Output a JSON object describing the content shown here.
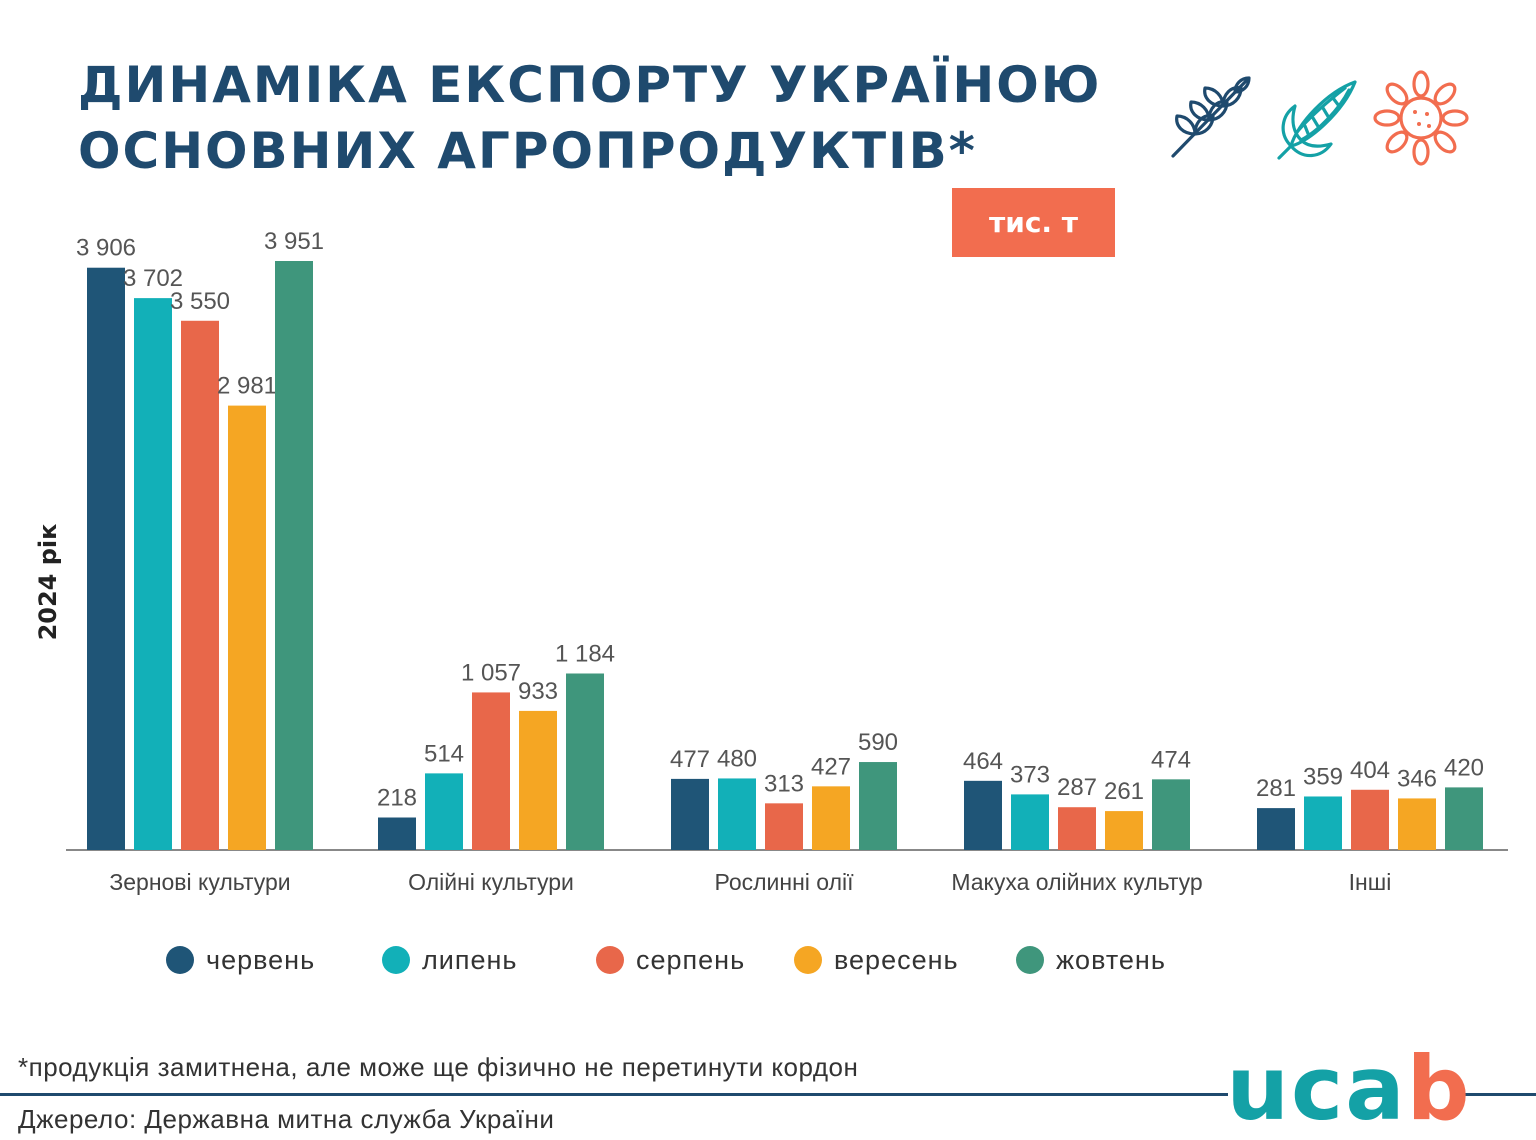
{
  "title": {
    "line1": "Динаміка експорту Україною",
    "line2": "основних агропродуктів*"
  },
  "icons": [
    "wheat-icon",
    "corn-icon",
    "sunflower-icon"
  ],
  "unit": "тис. т",
  "y_side_label": "2024 рік",
  "footnote": "*продукція замитнена, але може ще фізично не перетинути кордон",
  "source": "Джерело: Державна митна служба України",
  "logo": {
    "text_main": "uca",
    "text_accent": "b"
  },
  "colors": {
    "title": "#1f4a6e",
    "badge": "#f26d4f",
    "logo": "#14a1a6",
    "logo_accent": "#f26d4f",
    "axis": "#888888",
    "labels": "#555555"
  },
  "chart_data": {
    "type": "bar",
    "categories": [
      "Зернові культури",
      "Олійні культури",
      "Рослинні олії",
      "Макуха олійних культур",
      "Інші"
    ],
    "series": [
      {
        "name": "червень",
        "color": "#1f5577",
        "values": [
          3906,
          218,
          477,
          464,
          281
        ],
        "labels": [
          "3 906",
          "218",
          "477",
          "464",
          "281"
        ]
      },
      {
        "name": "липень",
        "color": "#12b0b8",
        "values": [
          3702,
          514,
          480,
          373,
          359
        ],
        "labels": [
          "3 702",
          "514",
          "480",
          "373",
          "359"
        ]
      },
      {
        "name": "серпень",
        "color": "#e8674a",
        "values": [
          3550,
          1057,
          313,
          287,
          404
        ],
        "labels": [
          "3 550",
          "1 057",
          "313",
          "287",
          "404"
        ]
      },
      {
        "name": "вересень",
        "color": "#f5a623",
        "values": [
          2981,
          933,
          427,
          261,
          346
        ],
        "labels": [
          "2 981",
          "933",
          "427",
          "261",
          "346"
        ]
      },
      {
        "name": "жовтень",
        "color": "#3f967c",
        "values": [
          3951,
          1184,
          590,
          474,
          420
        ],
        "labels": [
          "3 951",
          "1 184",
          "590",
          "474",
          "420"
        ]
      }
    ],
    "ylabel": "2024 рік",
    "ylim": [
      0,
      3951
    ],
    "grid": false,
    "legend": "bottom"
  }
}
